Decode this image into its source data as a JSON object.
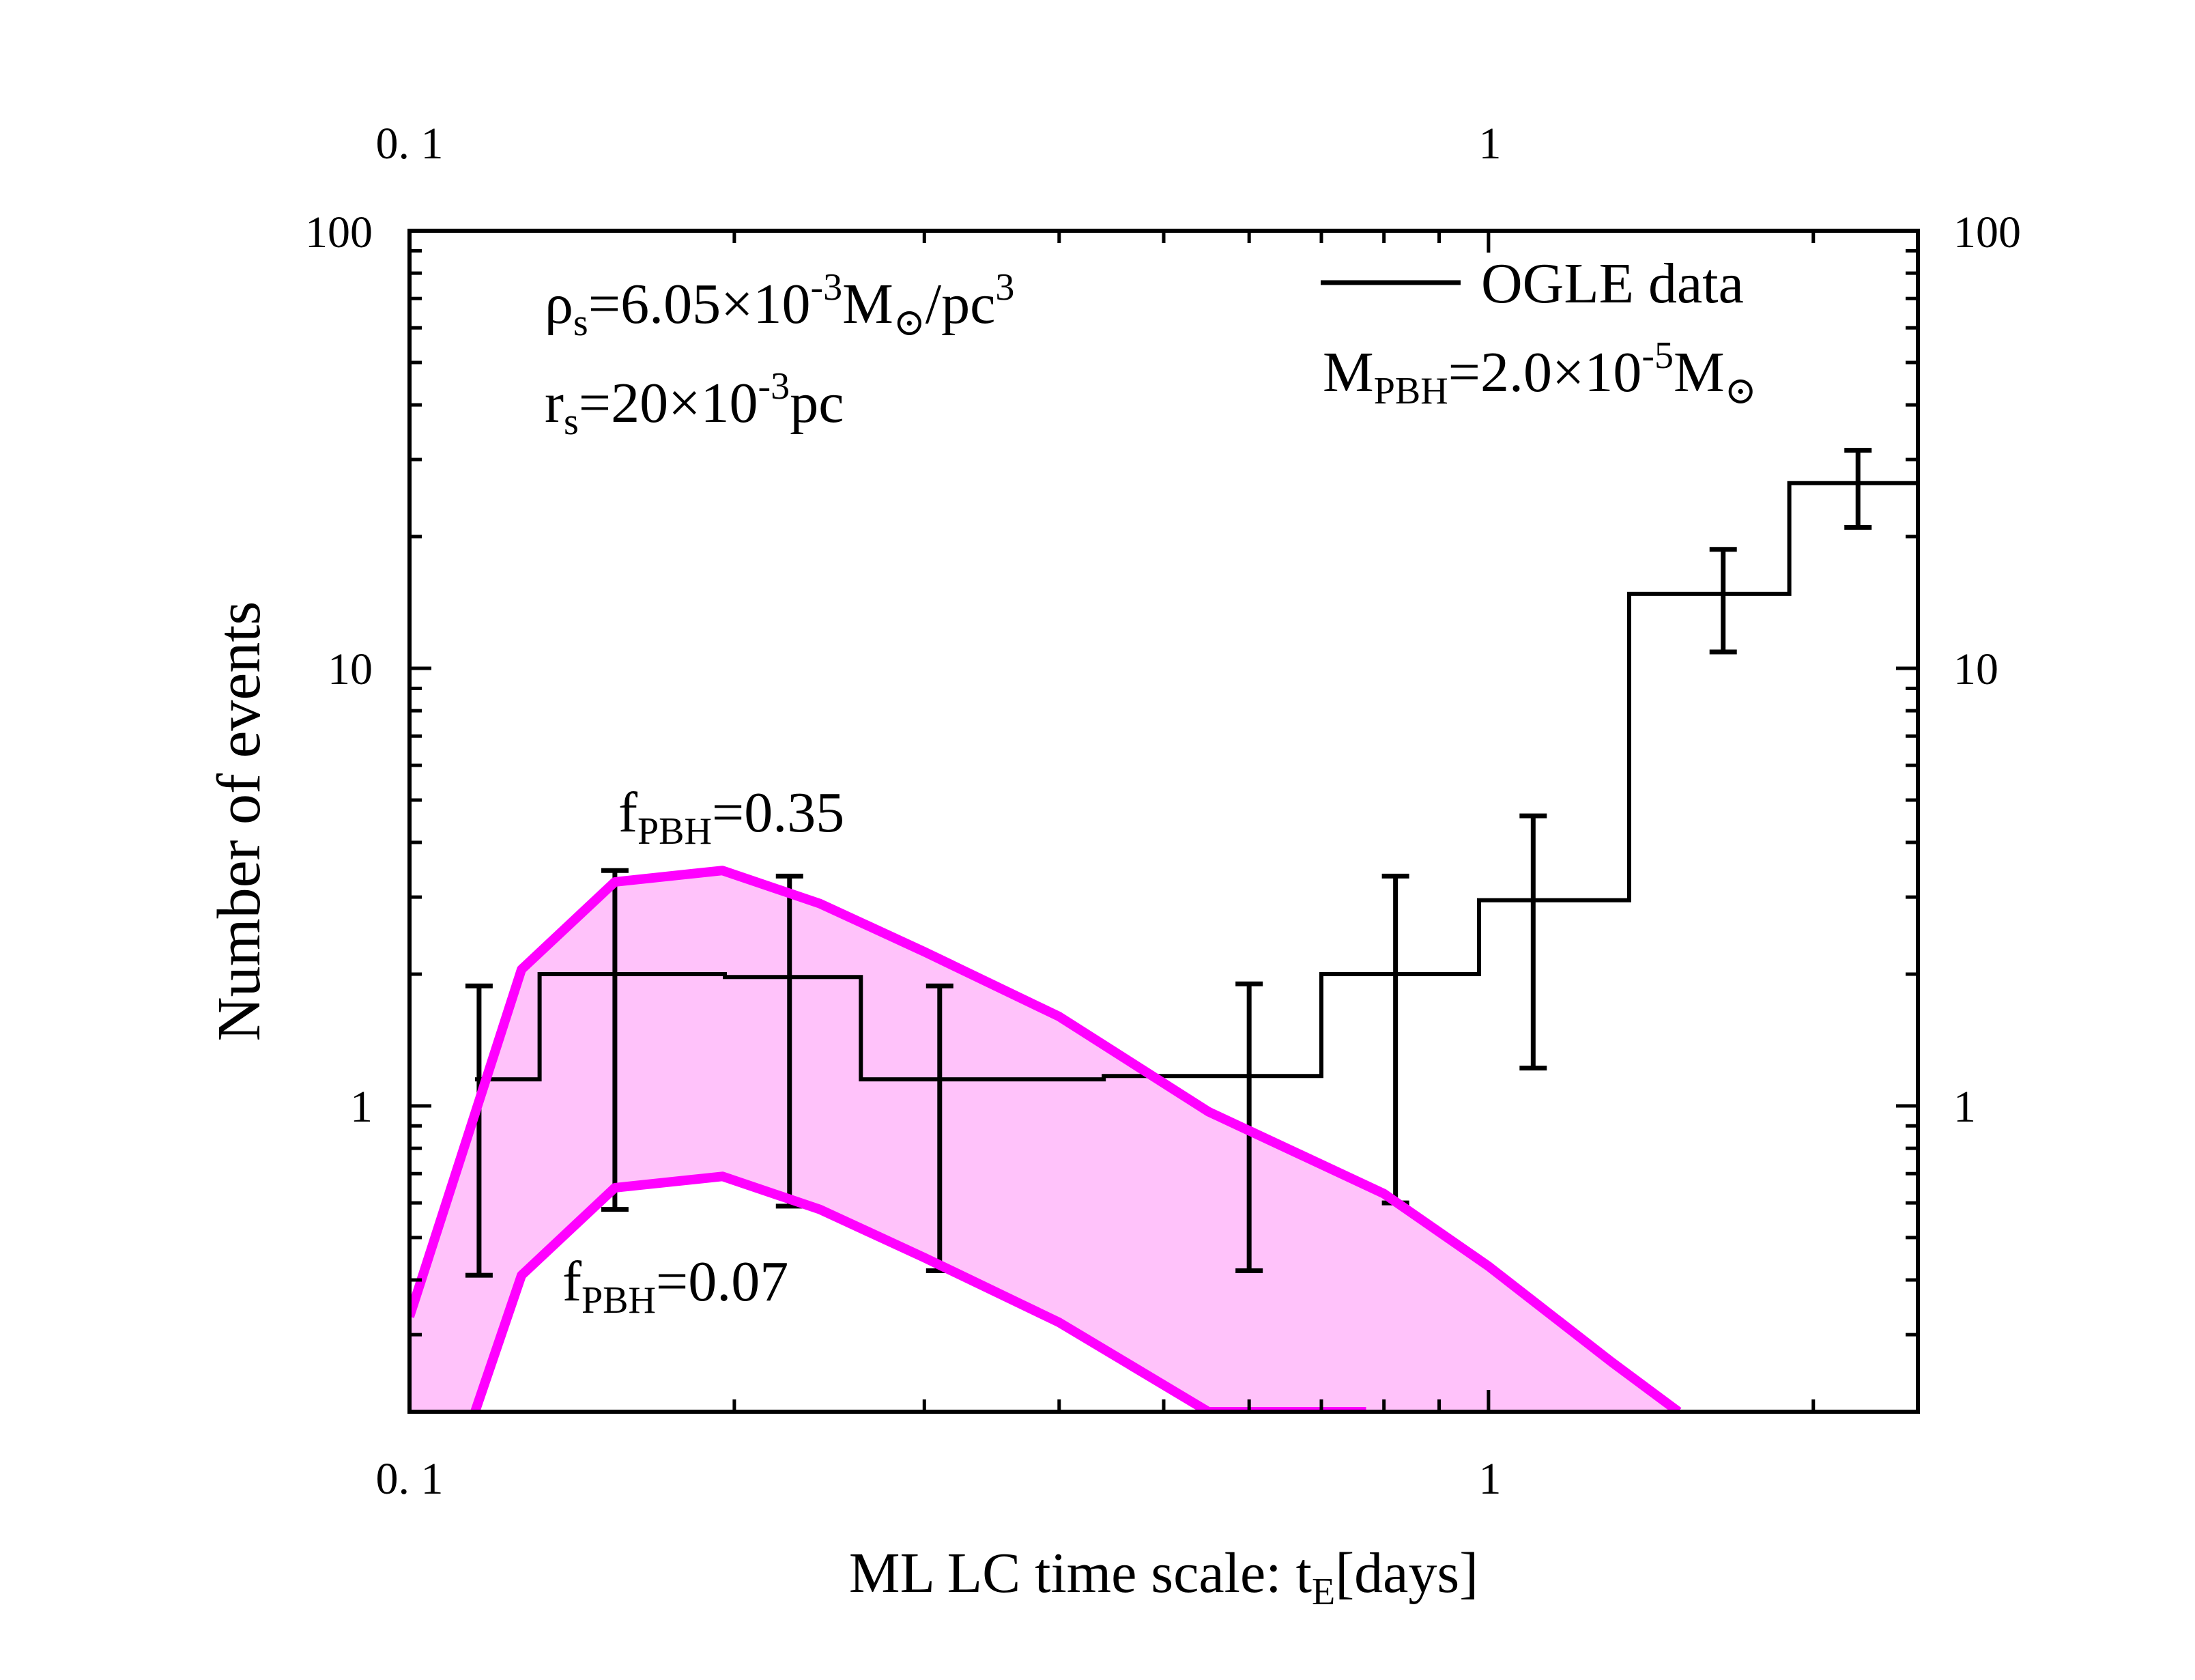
{
  "chart_data": {
    "type": "line",
    "xlabel": "ML LC time scale: t",
    "xlabel_sub": "E",
    "xlabel_suffix": "[days]",
    "ylabel": "Number of events",
    "xscale": "log",
    "yscale": "log",
    "xlim": [
      0.1,
      2.5
    ],
    "ylim": [
      0.2,
      100
    ],
    "xticks_major": [
      {
        "value": 0.1,
        "label": "0. 1"
      },
      {
        "value": 1,
        "label": "1"
      }
    ],
    "xticks_top": [
      {
        "value": 0.1,
        "label": "0. 1"
      },
      {
        "value": 1,
        "label": "1"
      }
    ],
    "yticks_major": [
      {
        "value": 1,
        "label": "1"
      },
      {
        "value": 10,
        "label": "10"
      },
      {
        "value": 100,
        "label": "100"
      }
    ],
    "legend": {
      "position": "top-right",
      "entries": [
        {
          "label": "OGLE data",
          "color": "#000000"
        }
      ]
    },
    "annotations": {
      "rho": {
        "a": "ρ",
        "b": "s",
        "c": "=6.05×10",
        "d": "-3",
        "e": "M",
        "f": "⊙",
        "g": "/pc",
        "h": "3"
      },
      "rs": {
        "a": "r",
        "b": "s",
        "c": "=20×10",
        "d": "-3",
        "e": "pc"
      },
      "mpbh": {
        "a": "M",
        "b": "PBH",
        "c": "=2.0×10",
        "d": "-5",
        "e": "M",
        "f": "⊙"
      },
      "fhigh": {
        "a": "f",
        "b": "PBH",
        "c": "=0.35"
      },
      "flow": {
        "a": "f",
        "b": "PBH",
        "c": "=0.07"
      }
    },
    "colors": {
      "data": "#000000",
      "curve": "#ff00ff",
      "fill": "#ffc2fa"
    },
    "series": [
      {
        "name": "OGLE data",
        "style": "step",
        "bins": [
          {
            "x0": 0.115,
            "x1": 0.132,
            "y": 1.15
          },
          {
            "x0": 0.132,
            "x1": 0.196,
            "y": 2.0
          },
          {
            "x0": 0.196,
            "x1": 0.262,
            "y": 1.97
          },
          {
            "x0": 0.262,
            "x1": 0.44,
            "y": 1.15
          },
          {
            "x0": 0.44,
            "x1": 0.7,
            "y": 1.17
          },
          {
            "x0": 0.7,
            "x1": 0.98,
            "y": 2.0
          },
          {
            "x0": 0.98,
            "x1": 1.35,
            "y": 2.95
          },
          {
            "x0": 1.35,
            "x1": 1.9,
            "y": 14.8
          },
          {
            "x0": 1.9,
            "x1": 2.5,
            "y": 26.5
          }
        ],
        "errorbars": [
          {
            "x": 0.116,
            "lo": 0.41,
            "hi": 1.88
          },
          {
            "x": 0.155,
            "lo": 0.58,
            "hi": 3.45
          },
          {
            "x": 0.225,
            "lo": 0.59,
            "hi": 3.35
          },
          {
            "x": 0.31,
            "lo": 0.42,
            "hi": 1.88
          },
          {
            "x": 0.6,
            "lo": 0.42,
            "hi": 1.9
          },
          {
            "x": 0.82,
            "lo": 0.6,
            "hi": 3.35
          },
          {
            "x": 1.1,
            "lo": 1.22,
            "hi": 4.6
          },
          {
            "x": 1.65,
            "lo": 10.9,
            "hi": 18.7
          },
          {
            "x": 2.2,
            "lo": 21.0,
            "hi": 31.5
          }
        ]
      },
      {
        "name": "f_PBH=0.35",
        "x": [
          0.1,
          0.127,
          0.155,
          0.195,
          0.24,
          0.3,
          0.4,
          0.55,
          0.8,
          1.0,
          1.3,
          1.5
        ],
        "y": [
          0.33,
          2.05,
          3.25,
          3.45,
          2.9,
          2.25,
          1.6,
          0.97,
          0.63,
          0.43,
          0.26,
          0.2
        ]
      },
      {
        "name": "f_PBH=0.07",
        "x": [
          0.115,
          0.127,
          0.155,
          0.195,
          0.24,
          0.3,
          0.4,
          0.55,
          0.77
        ],
        "y": [
          0.2,
          0.41,
          0.65,
          0.69,
          0.58,
          0.45,
          0.32,
          0.2,
          0.2
        ]
      }
    ]
  }
}
